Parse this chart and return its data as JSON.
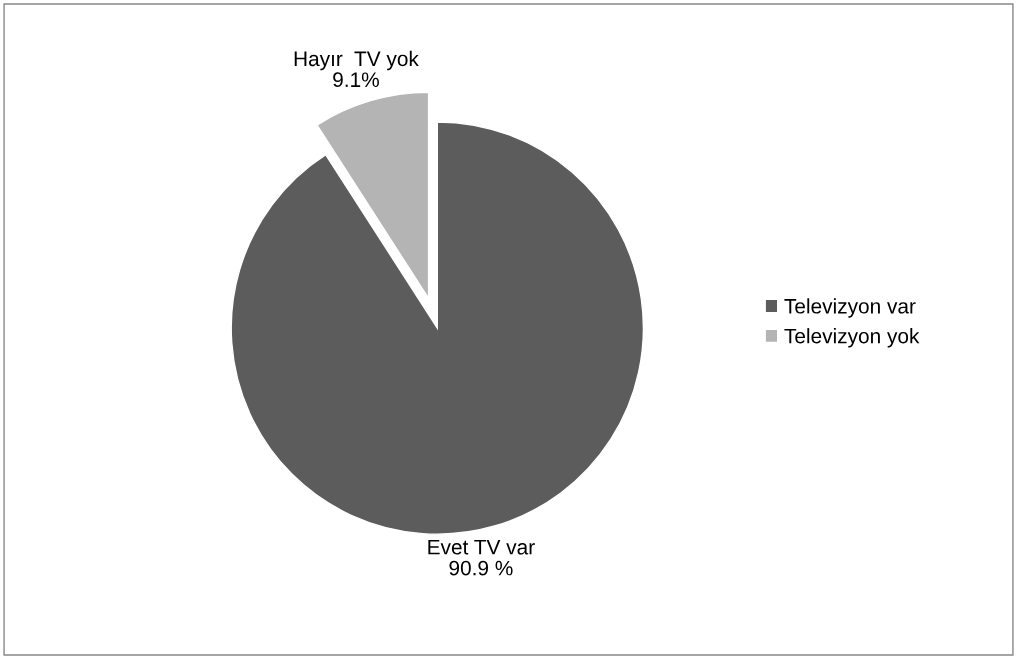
{
  "chart_data": {
    "type": "pie",
    "categories": [
      "Televizyon var",
      "Televizyon yok"
    ],
    "values": [
      90.9,
      9.1
    ],
    "colors": [
      "#5c5c5c",
      "#b4b4b4"
    ],
    "value_labels": [
      "Evet TV var\n90.9 %",
      "Hayır  TV yok\n9.1%"
    ],
    "legend": "right"
  }
}
